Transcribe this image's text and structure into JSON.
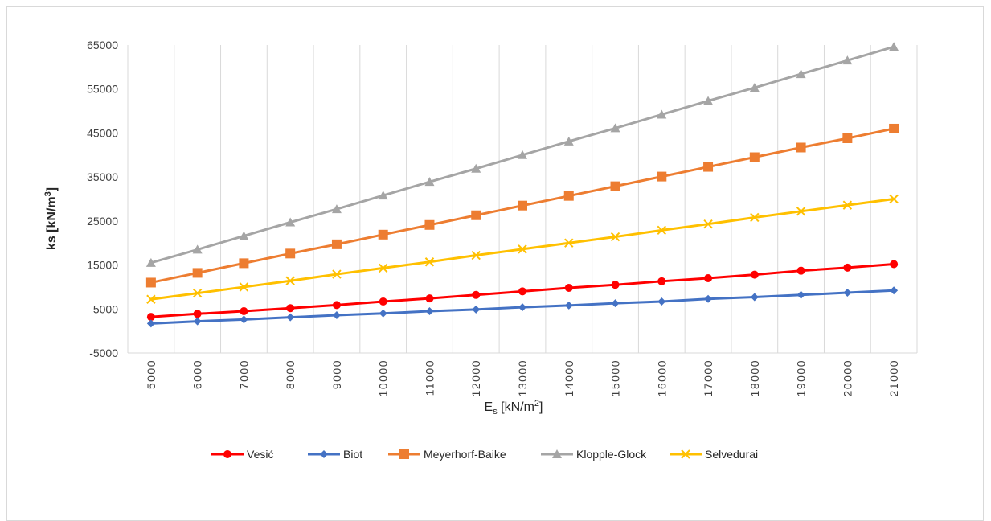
{
  "chart_data": {
    "type": "line",
    "title": "",
    "xlabel": "E",
    "xlabel_sub": "s",
    "xlabel_unit": " [kN/m",
    "xlabel_sup": "2",
    "xlabel_close": "]",
    "ylabel": "ks [kN/m",
    "ylabel_sup": "3",
    "ylabel_close": "]",
    "ylim": [
      -5000,
      65000
    ],
    "yticks": [
      -5000,
      5000,
      15000,
      25000,
      35000,
      45000,
      55000,
      65000
    ],
    "ytick_labels": [
      "-5000",
      "5000",
      "15000",
      "25000",
      "35000",
      "45000",
      "55000",
      "65000"
    ],
    "x": [
      5000,
      6000,
      7000,
      8000,
      9000,
      10000,
      11000,
      12000,
      13000,
      14000,
      15000,
      16000,
      17000,
      18000,
      19000,
      20000,
      21000
    ],
    "x_labels": [
      "5000",
      "6000",
      "7000",
      "8000",
      "9000",
      "10000",
      "11000",
      "12000",
      "13000",
      "14000",
      "15000",
      "16000",
      "17000",
      "18000",
      "19000",
      "20000",
      "21000"
    ],
    "grid": "vertical",
    "legend_position": "bottom",
    "series": [
      {
        "name": "Vesić",
        "color": "#ff0000",
        "marker": "circle",
        "values": [
          3200,
          3900,
          4500,
          5200,
          5900,
          6700,
          7400,
          8200,
          9000,
          9800,
          10500,
          11300,
          12000,
          12800,
          13700,
          14400,
          15200
        ]
      },
      {
        "name": "Biot",
        "color": "#4472c4",
        "marker": "diamond",
        "values": [
          1700,
          2200,
          2600,
          3100,
          3600,
          4000,
          4500,
          4900,
          5400,
          5800,
          6300,
          6700,
          7300,
          7700,
          8200,
          8700,
          9200
        ]
      },
      {
        "name": "Meyerhorf-Baike",
        "color": "#ed7d31",
        "marker": "square",
        "values": [
          11000,
          13200,
          15400,
          17600,
          19700,
          21900,
          24100,
          26300,
          28500,
          30700,
          32900,
          35100,
          37300,
          39500,
          41700,
          43800,
          46000
        ]
      },
      {
        "name": "Klopple-Glock",
        "color": "#a5a5a5",
        "marker": "triangle",
        "values": [
          15500,
          18500,
          21600,
          24700,
          27700,
          30800,
          33900,
          36900,
          40000,
          43100,
          46100,
          49200,
          52300,
          55300,
          58400,
          61500,
          64600
        ]
      },
      {
        "name": "Selvedurai",
        "color": "#ffc000",
        "marker": "x",
        "values": [
          7200,
          8600,
          10000,
          11400,
          12900,
          14300,
          15700,
          17200,
          18600,
          20000,
          21400,
          22900,
          24300,
          25800,
          27200,
          28600,
          30000
        ]
      }
    ]
  }
}
